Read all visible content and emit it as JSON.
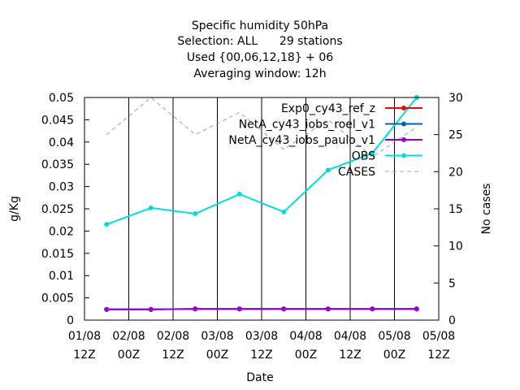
{
  "chart_data": {
    "type": "line",
    "title_lines": [
      "Specific humidity 50hPa",
      "Selection: ALL      29 stations",
      "Used {00,06,12,18} + 06",
      "Averaging window: 12h"
    ],
    "xlabel": "Date",
    "ylabel": "g/Kg",
    "y2label": "No cases",
    "x_ticks": [
      {
        "x": 0,
        "line1": "01/08",
        "line2": "12Z"
      },
      {
        "x": 12,
        "line1": "02/08",
        "line2": "00Z"
      },
      {
        "x": 24,
        "line1": "02/08",
        "line2": "12Z"
      },
      {
        "x": 36,
        "line1": "03/08",
        "line2": "00Z"
      },
      {
        "x": 48,
        "line1": "03/08",
        "line2": "12Z"
      },
      {
        "x": 60,
        "line1": "04/08",
        "line2": "00Z"
      },
      {
        "x": 72,
        "line1": "04/08",
        "line2": "12Z"
      },
      {
        "x": 84,
        "line1": "05/08",
        "line2": "00Z"
      },
      {
        "x": 96,
        "line1": "05/08",
        "line2": "12Z"
      }
    ],
    "xlim": [
      0,
      96
    ],
    "ylim": [
      0,
      0.05
    ],
    "y_ticks": [
      0,
      0.005,
      0.01,
      0.015,
      0.02,
      0.025,
      0.03,
      0.035,
      0.04,
      0.045,
      0.05
    ],
    "y2lim": [
      0,
      30
    ],
    "y2_ticks": [
      0,
      5,
      10,
      15,
      20,
      25,
      30
    ],
    "legend_position": "top-right",
    "series": [
      {
        "name": "Exp0_cy43_ref_z",
        "color": "#ff0000",
        "axis": "y",
        "x": [
          6,
          18,
          30,
          42,
          54,
          66,
          78,
          90
        ],
        "values": [
          0.0024,
          0.0024,
          0.0025,
          0.0025,
          0.0025,
          0.0025,
          0.0025,
          0.0025
        ]
      },
      {
        "name": "NetA_cy43_iobs_roel_v1",
        "color": "#0060ad",
        "axis": "y",
        "x": [
          6,
          18,
          30,
          42,
          54,
          66,
          78,
          90
        ],
        "values": [
          0.0024,
          0.0024,
          0.0025,
          0.0025,
          0.0025,
          0.0025,
          0.0025,
          0.0025
        ]
      },
      {
        "name": "NetA_cy43_iobs_paulo_v1",
        "color": "#9400d3",
        "axis": "y",
        "x": [
          6,
          18,
          30,
          42,
          54,
          66,
          78,
          90
        ],
        "values": [
          0.0024,
          0.0024,
          0.0025,
          0.0025,
          0.0025,
          0.0025,
          0.0025,
          0.0025
        ]
      },
      {
        "name": "OBS",
        "color": "#00dddd",
        "axis": "y",
        "x": [
          6,
          18,
          30,
          42,
          54,
          66,
          78,
          90
        ],
        "values": [
          0.0215,
          0.0252,
          0.0239,
          0.0283,
          0.0243,
          0.0337,
          0.0375,
          0.05
        ]
      },
      {
        "name": "CASES",
        "color": "#a0a0a0",
        "axis": "y2",
        "dashed": true,
        "x": [
          6,
          18,
          30,
          42,
          54,
          66,
          78,
          90
        ],
        "values": [
          25,
          30,
          25,
          28,
          23,
          27,
          22,
          26
        ]
      }
    ]
  }
}
